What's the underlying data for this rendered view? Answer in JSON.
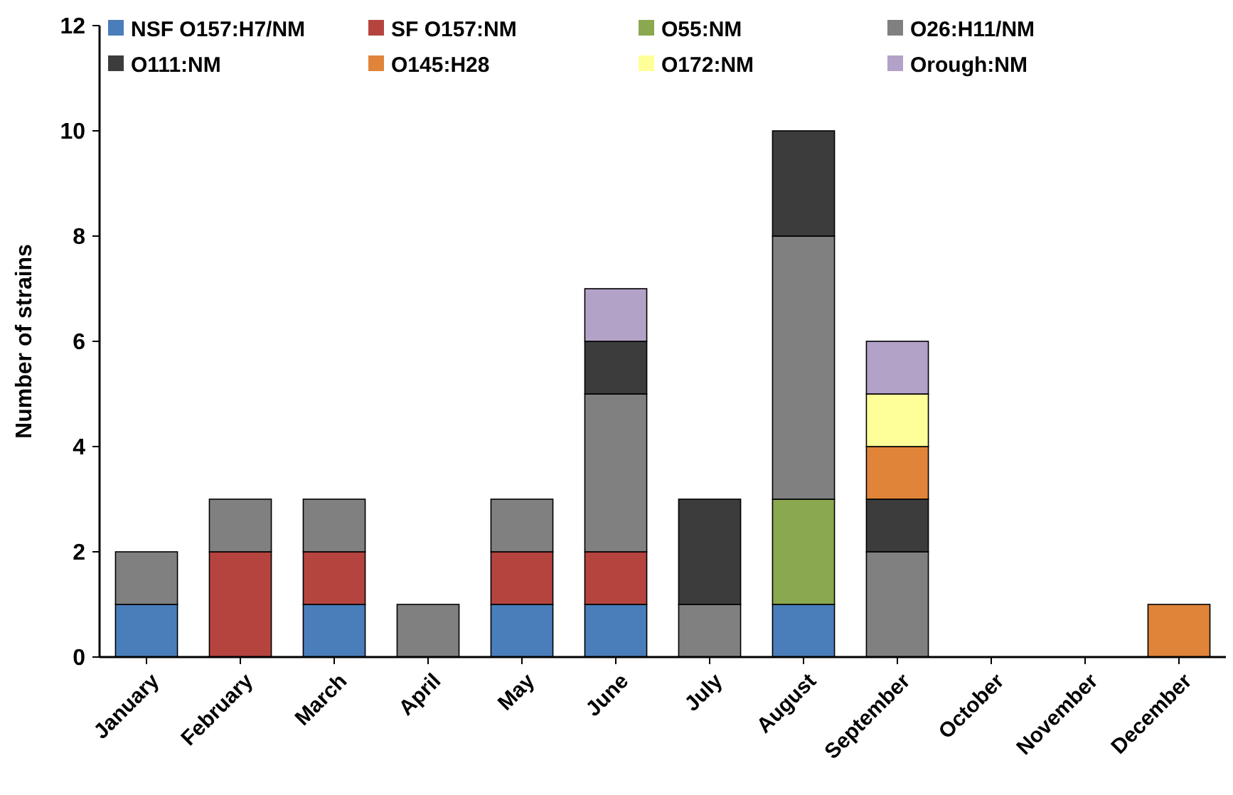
{
  "chart_data": {
    "type": "bar",
    "stacked": true,
    "ylabel": "Number of strains",
    "legend": "top",
    "grid": false,
    "categories": [
      "January",
      "February",
      "March",
      "April",
      "May",
      "June",
      "July",
      "August",
      "September",
      "October",
      "November",
      "December"
    ],
    "ylim": [
      0,
      12
    ],
    "yticks": [
      0,
      2,
      4,
      6,
      8,
      10,
      12
    ],
    "series": [
      {
        "name": "NSF O157:H7/NM",
        "color": "#4a7ebb",
        "values": [
          1,
          0,
          1,
          0,
          1,
          1,
          0,
          1,
          0,
          0,
          0,
          0
        ]
      },
      {
        "name": "SF O157:NM",
        "color": "#b5443f",
        "values": [
          0,
          2,
          1,
          0,
          1,
          1,
          0,
          0,
          0,
          0,
          0,
          0
        ]
      },
      {
        "name": "O55:NM",
        "color": "#8aa84f",
        "values": [
          0,
          0,
          0,
          0,
          0,
          0,
          0,
          2,
          0,
          0,
          0,
          0
        ]
      },
      {
        "name": "O26:H11/NM",
        "color": "#808080",
        "values": [
          1,
          1,
          1,
          1,
          1,
          3,
          1,
          5,
          2,
          0,
          0,
          0
        ]
      },
      {
        "name": "O111:NM",
        "color": "#3c3c3c",
        "values": [
          0,
          0,
          0,
          0,
          0,
          1,
          2,
          2,
          1,
          0,
          0,
          0
        ]
      },
      {
        "name": "O145:H28",
        "color": "#e0843a",
        "values": [
          0,
          0,
          0,
          0,
          0,
          0,
          0,
          0,
          1,
          0,
          0,
          1
        ]
      },
      {
        "name": "O172:NM",
        "color": "#ffff99",
        "values": [
          0,
          0,
          0,
          0,
          0,
          0,
          0,
          0,
          1,
          0,
          0,
          0
        ]
      },
      {
        "name": "Orough:NM",
        "color": "#b3a2c7",
        "values": [
          0,
          0,
          0,
          0,
          0,
          1,
          0,
          0,
          1,
          0,
          0,
          0
        ]
      }
    ]
  }
}
